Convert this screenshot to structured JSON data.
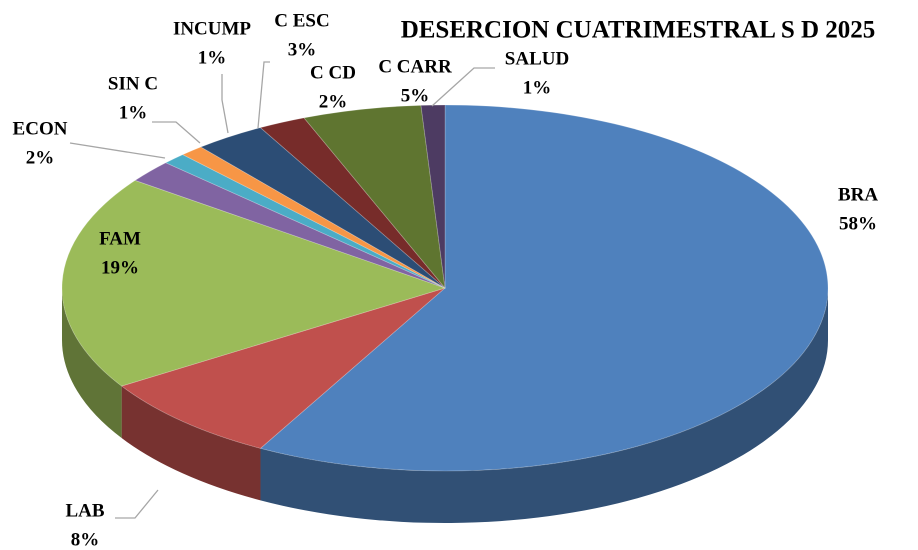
{
  "chart_data": {
    "type": "pie",
    "title": "DESERCION CUATRIMESTRAL S D 2025",
    "categories": [
      "BRA",
      "LAB",
      "FAM",
      "ECON",
      "SIN C",
      "INCUMP",
      "C ESC",
      "C CD",
      "C CARR",
      "SALUD"
    ],
    "values": [
      58,
      8,
      19,
      2,
      1,
      1,
      3,
      2,
      5,
      1
    ],
    "value_labels": [
      "58%",
      "8%",
      "19%",
      "2%",
      "1%",
      "1%",
      "3%",
      "2%",
      "5%",
      "1%"
    ],
    "colors": [
      "#4f81bd",
      "#c0504d",
      "#9bbb59",
      "#8064a2",
      "#4bacc6",
      "#f79646",
      "#2c4d75",
      "#772c2a",
      "#5f7530",
      "#4d3b62"
    ]
  }
}
